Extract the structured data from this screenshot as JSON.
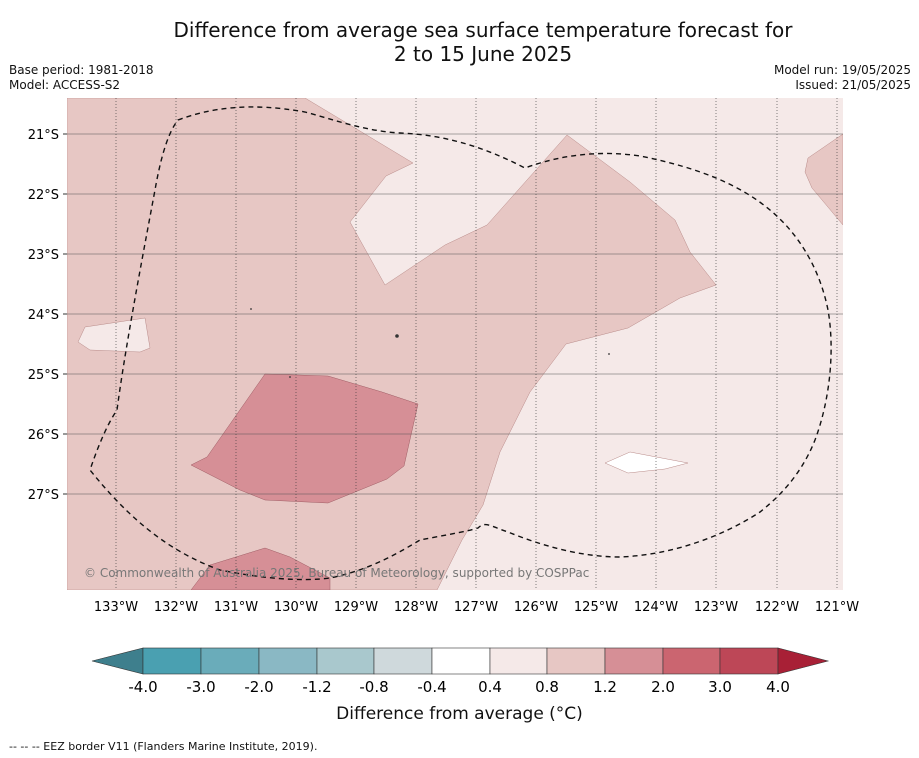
{
  "title": {
    "line1": "Difference from average sea surface temperature forecast for",
    "line2": "2 to 15 June 2025"
  },
  "meta": {
    "base_period": "Base period: 1981-2018",
    "model": "Model: ACCESS-S2",
    "model_run": "Model run: 19/05/2025",
    "issued": "Issued: 21/05/2025"
  },
  "map": {
    "latitude_labels": [
      "21°S",
      "22°S",
      "23°S",
      "24°S",
      "25°S",
      "26°S",
      "27°S"
    ],
    "longitude_labels": [
      "133°W",
      "132°W",
      "131°W",
      "130°W",
      "129°W",
      "128°W",
      "127°W",
      "126°W",
      "125°W",
      "124°W",
      "123°W",
      "122°W",
      "121°W"
    ],
    "copyright": "© Commonwealth of Australia 2025, Bureau of Meteorology, supported by COSPPac",
    "colors": {
      "c_0_4_to_0_8": "#f5e9e8",
      "c_0_8_to_1_2": "#e7c7c4",
      "c_1_2_to_2_0": "#d68f96",
      "c_neg0_4_to_0_4": "#ffffff"
    }
  },
  "colorbar": {
    "tick_labels": [
      "-4.0",
      "-3.0",
      "-2.0",
      "-1.2",
      "-0.8",
      "-0.4",
      "0.4",
      "0.8",
      "1.2",
      "2.0",
      "3.0",
      "4.0"
    ],
    "colors": [
      "#3e7f8d",
      "#4aa0b1",
      "#6aacba",
      "#8ab8c4",
      "#a9c8cd",
      "#cfd9dc",
      "#ffffff",
      "#f5e9e8",
      "#e7c7c4",
      "#d68f96",
      "#cb6570",
      "#bd4757",
      "#a82036"
    ],
    "title": "Difference from average (°C)"
  },
  "footnote": "-- -- -- EEZ border V11 (Flanders Marine Institute, 2019)."
}
